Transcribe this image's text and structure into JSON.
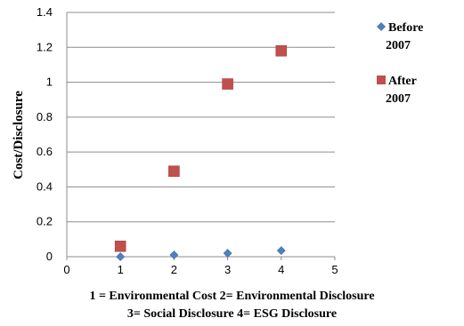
{
  "chart_data": {
    "type": "scatter",
    "title": "",
    "xlabel": "",
    "ylabel": "Cost/Disclosure",
    "xlim": [
      0,
      5
    ],
    "ylim": [
      0,
      1.4
    ],
    "xticks": [
      "0",
      "1",
      "2",
      "3",
      "4",
      "5"
    ],
    "yticks": [
      "0",
      "0.2",
      "0.4",
      "0.6",
      "0.8",
      "1",
      "1.2",
      "1.4"
    ],
    "grid": "horizontal",
    "legend": "right",
    "series": [
      {
        "name_lines": [
          "Before",
          "2007"
        ],
        "marker": "diamond",
        "color": "#4f81bd",
        "x": [
          1,
          2,
          3,
          4
        ],
        "y": [
          0.0,
          0.01,
          0.02,
          0.035
        ]
      },
      {
        "name_lines": [
          "After",
          "2007"
        ],
        "marker": "square",
        "color": "#c0504d",
        "x": [
          1,
          2,
          3,
          4
        ],
        "y": [
          0.06,
          0.49,
          0.99,
          1.18
        ]
      }
    ],
    "caption_lines": [
      "1 = Environmental Cost    2= Environmental Disclosure",
      "3= Social Disclosure    4= ESG Disclosure"
    ]
  }
}
